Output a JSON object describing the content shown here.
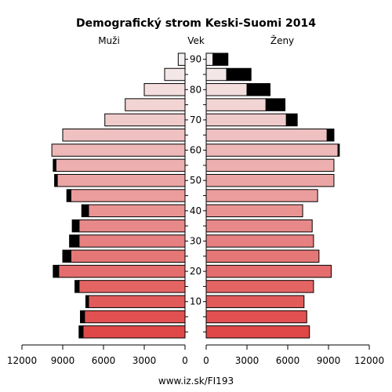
{
  "chart_data": {
    "type": "bar",
    "title": "Demografický strom Keski-Suomi 2014",
    "left_label": "Muži",
    "center_label": "Vek",
    "right_label": "Ženy",
    "footer": "www.iz.sk/FI193",
    "age_groups": [
      "0-4",
      "5-9",
      "10-14",
      "15-19",
      "20-24",
      "25-29",
      "30-34",
      "35-39",
      "40-44",
      "45-49",
      "50-54",
      "55-59",
      "60-64",
      "65-69",
      "70-74",
      "75-79",
      "80-84",
      "85-89",
      "90+"
    ],
    "age_ticks": [
      10,
      20,
      30,
      40,
      50,
      60,
      70,
      80,
      90
    ],
    "axis_ticks": [
      12000,
      9000,
      6000,
      3000,
      0
    ],
    "axis_ticks_right": [
      0,
      3000,
      6000,
      9000,
      12000
    ],
    "xlim": [
      0,
      12000
    ],
    "series": [
      {
        "name": "Muži",
        "side": "left",
        "values": [
          7500,
          7400,
          7100,
          7800,
          9300,
          8400,
          7800,
          7800,
          7100,
          8400,
          9400,
          9500,
          9800,
          9000,
          5900,
          4400,
          3000,
          1500,
          500
        ],
        "excess": [
          300,
          300,
          200,
          300,
          400,
          600,
          700,
          500,
          500,
          300,
          200,
          200,
          0,
          0,
          0,
          0,
          0,
          0,
          0
        ]
      },
      {
        "name": "Ženy",
        "side": "right",
        "values": [
          7600,
          7400,
          7200,
          7900,
          9200,
          8300,
          7900,
          7800,
          7100,
          8200,
          9400,
          9400,
          9700,
          8900,
          5900,
          4400,
          3000,
          1500,
          500
        ],
        "excess": [
          0,
          0,
          0,
          0,
          0,
          0,
          0,
          0,
          0,
          0,
          0,
          0,
          100,
          500,
          800,
          1400,
          1700,
          1800,
          1100
        ]
      }
    ]
  }
}
